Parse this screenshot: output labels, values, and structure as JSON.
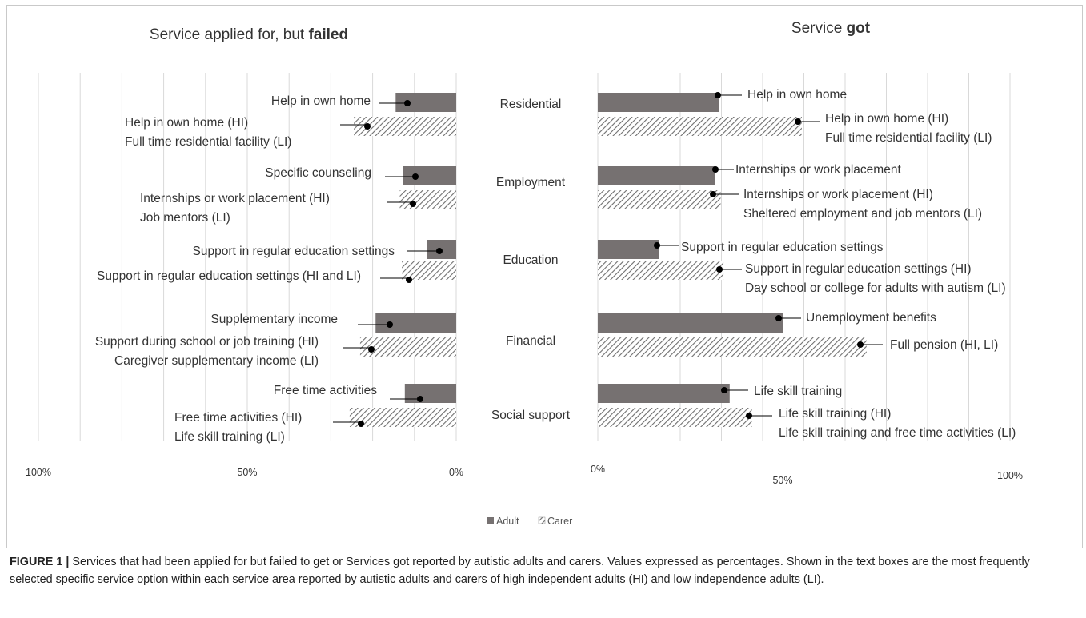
{
  "chart_data": [
    {
      "type": "bar",
      "title_prefix": "Service applied for, but ",
      "title_bold": "failed",
      "orientation": "horizontal-reversed",
      "categories": [
        "Residential",
        "Employment",
        "Education",
        "Financial",
        "Social support"
      ],
      "xlim": [
        0,
        100
      ],
      "x_ticks": [
        "100%",
        "50%",
        "0%"
      ],
      "series": [
        {
          "name": "Adult",
          "values": [
            14.5,
            12.8,
            7,
            19.3,
            12.3
          ]
        },
        {
          "name": "Carer",
          "values": [
            24.5,
            13.5,
            13,
            23,
            25.5
          ]
        }
      ],
      "annotations": {
        "Adult": [
          [
            "Help in own home"
          ],
          [
            "Specific counseling"
          ],
          [
            "Support in regular education settings"
          ],
          [
            "Supplementary income"
          ],
          [
            "Free time activities"
          ]
        ],
        "Carer": [
          [
            "Help in own home (HI)",
            "Full time residential facility (LI)"
          ],
          [
            "Internships or work placement (HI)",
            "Job mentors (LI)"
          ],
          [
            "Support in regular education settings (HI and LI)"
          ],
          [
            "Support during school or job training (HI)",
            "Caregiver supplementary income (LI)"
          ],
          [
            "Free time activities (HI)",
            "Life skill training (LI)"
          ]
        ]
      }
    },
    {
      "type": "bar",
      "title_prefix": "Service ",
      "title_bold": "got",
      "orientation": "horizontal",
      "categories": [
        "Residential",
        "Employment",
        "Education",
        "Financial",
        "Social support"
      ],
      "xlim": [
        0,
        100
      ],
      "x_ticks": [
        "0%",
        "50%",
        "100%"
      ],
      "series": [
        {
          "name": "Adult",
          "values": [
            29.5,
            28.5,
            14.8,
            45,
            32
          ]
        },
        {
          "name": "Carer",
          "values": [
            49.5,
            29.8,
            30.5,
            65.2,
            37.4
          ]
        }
      ],
      "annotations": {
        "Adult": [
          [
            "Help in own home"
          ],
          [
            "Internships or work placement"
          ],
          [
            "Support in regular education settings"
          ],
          [
            "Unemployment benefits"
          ],
          [
            "Life skill training"
          ]
        ],
        "Carer": [
          [
            "Help in own home (HI)",
            "Full time residential facility (LI)"
          ],
          [
            "Internships or work placement (HI)",
            "Sheltered employment and job mentors (LI)"
          ],
          [
            "Support in regular education settings (HI)",
            "Day school or college for adults with autism (LI)"
          ],
          [
            "Full pension (HI, LI)"
          ],
          [
            "Life skill training (HI)",
            "Life skill training  and free time activities (LI)"
          ]
        ]
      }
    }
  ],
  "legend": {
    "position": "bottom",
    "items": [
      "Adult",
      "Carer"
    ]
  },
  "colors": {
    "adult": "#767171",
    "carer_stripe": "#6e6e6e",
    "grid": "#d9d9d9",
    "text": "#333333"
  },
  "caption": {
    "label": "FIGURE 1 |",
    "text": " Services that had been applied for but failed to get or Services got reported by autistic adults and carers. Values expressed as percentages. Shown in the text boxes are the most frequently selected specific service option within each service area reported by autistic adults and carers of high independent adults (HI) and low independence adults (LI)."
  }
}
